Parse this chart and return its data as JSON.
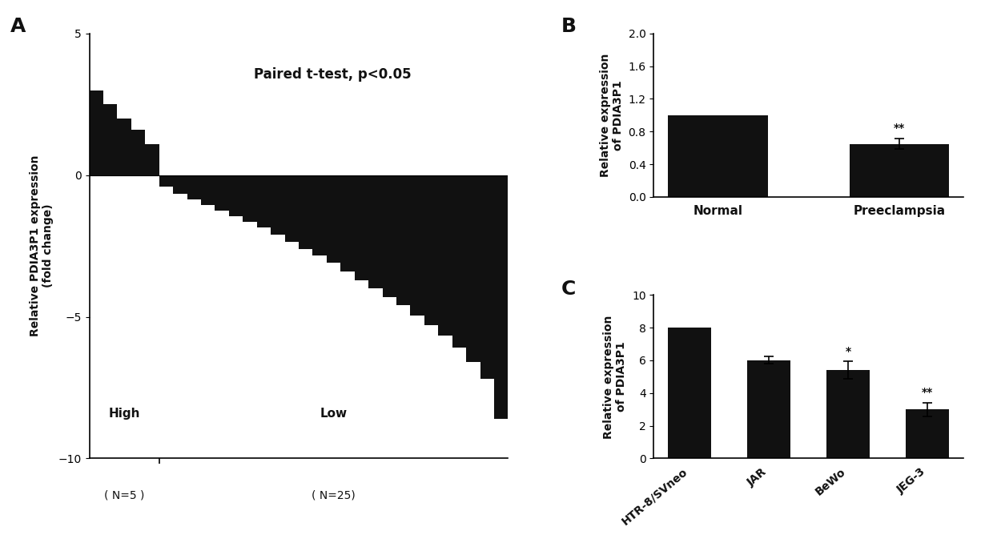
{
  "panel_A": {
    "label": "A",
    "title": "Paired t-test, p<0.05",
    "ylabel": "Relative PDIA3P1 expression\n(fold change)",
    "high_label": "High",
    "low_label": "Low",
    "n_high_label": "( N=5 )",
    "n_low_label": "( N=25)",
    "ylim": [
      -10,
      5
    ],
    "yticks": [
      -10,
      -5,
      0,
      5
    ],
    "bar_values": [
      3.0,
      2.5,
      2.0,
      1.6,
      1.1,
      -0.4,
      -0.65,
      -0.85,
      -1.05,
      -1.25,
      -1.45,
      -1.65,
      -1.85,
      -2.1,
      -2.35,
      -2.6,
      -2.85,
      -3.1,
      -3.4,
      -3.7,
      -4.0,
      -4.3,
      -4.6,
      -4.95,
      -5.3,
      -5.65,
      -6.1,
      -6.6,
      -7.2,
      -8.6
    ],
    "n_high": 5,
    "bar_color": "#111111",
    "bar_width": 1.0
  },
  "panel_B": {
    "label": "B",
    "ylabel": "Relative expression\nof PDIA3P1",
    "categories": [
      "Normal",
      "Preeclampsia"
    ],
    "values": [
      1.0,
      0.65
    ],
    "errors": [
      0.0,
      0.06
    ],
    "ylim": [
      0,
      2
    ],
    "yticks": [
      0,
      0.4,
      0.8,
      1.2,
      1.6,
      2.0
    ],
    "bar_color": "#111111",
    "bar_width": 0.55,
    "significance": [
      "",
      "**"
    ]
  },
  "panel_C": {
    "label": "C",
    "ylabel": "Relative expression\nof PDIA3P1",
    "categories": [
      "HTR-8/SVneo",
      "JAR",
      "BeWo",
      "JEG-3"
    ],
    "values": [
      8.0,
      6.0,
      5.4,
      3.0
    ],
    "errors": [
      0.0,
      0.22,
      0.55,
      0.42
    ],
    "ylim": [
      0,
      10
    ],
    "yticks": [
      0,
      2,
      4,
      6,
      8,
      10
    ],
    "bar_color": "#111111",
    "bar_width": 0.55,
    "significance": [
      "",
      "",
      "*",
      "**"
    ]
  },
  "bg_color": "#ffffff",
  "text_color": "#111111",
  "label_fontsize": 18,
  "tick_fontsize": 10,
  "axis_label_fontsize": 10,
  "title_fontsize": 12
}
